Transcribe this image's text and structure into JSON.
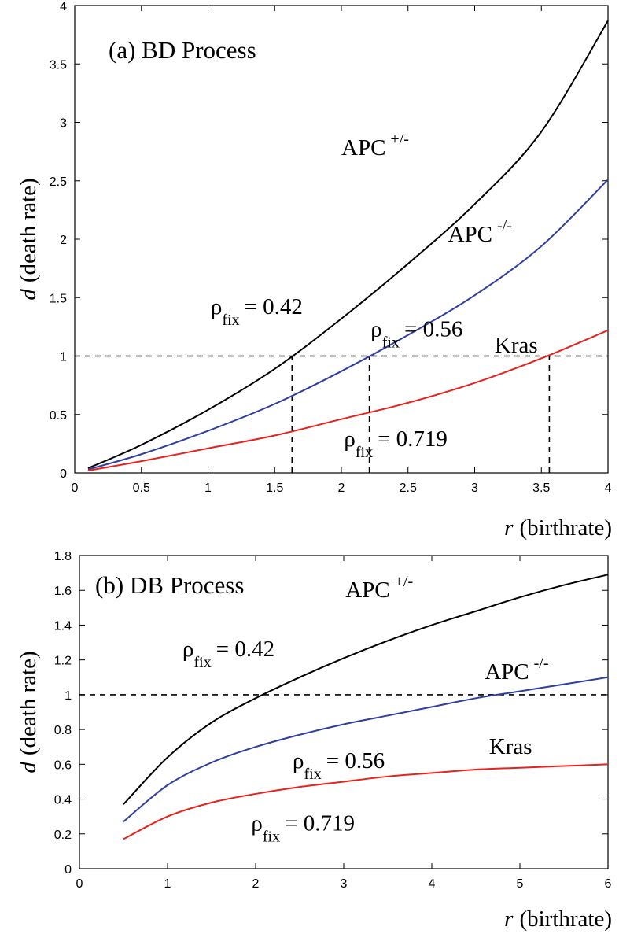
{
  "chart_data": [
    {
      "type": "line",
      "title": "(a) BD Process",
      "xlabel_var": "r",
      "xlabel_text": "(birthrate)",
      "ylabel_var": "d",
      "ylabel_text": "(death rate)",
      "xlim": [
        0,
        4
      ],
      "ylim": [
        0,
        4
      ],
      "xticks": [
        "0",
        "0.5",
        "1",
        "1.5",
        "2",
        "2.5",
        "3",
        "3.5",
        "4"
      ],
      "yticks": [
        "0",
        "0.5",
        "1",
        "1.5",
        "2",
        "2.5",
        "3",
        "3.5",
        "4"
      ],
      "grid": false,
      "series": [
        {
          "color": "#000000",
          "x": [
            0.1,
            0.5,
            1.0,
            1.5,
            2.0,
            2.5,
            3.0,
            3.5,
            4.0
          ],
          "y": [
            0.04,
            0.24,
            0.54,
            0.89,
            1.32,
            1.79,
            2.3,
            2.92,
            3.87
          ]
        },
        {
          "color": "#2e3fa0",
          "x": [
            0.1,
            0.5,
            1.0,
            1.5,
            2.0,
            2.5,
            3.0,
            3.5,
            4.0
          ],
          "y": [
            0.03,
            0.16,
            0.36,
            0.59,
            0.87,
            1.18,
            1.52,
            1.94,
            2.51
          ]
        },
        {
          "color": "#e8211c",
          "x": [
            0.1,
            0.5,
            1.0,
            1.5,
            2.0,
            2.5,
            3.0,
            3.5,
            4.0
          ],
          "y": [
            0.02,
            0.1,
            0.21,
            0.32,
            0.46,
            0.6,
            0.77,
            0.98,
            1.22
          ]
        }
      ],
      "reference_lines": [
        {
          "orientation": "horizontal",
          "y": 1,
          "xrange": [
            0,
            4
          ],
          "style": "dashed"
        },
        {
          "orientation": "vertical",
          "x": 1.63,
          "yrange": [
            0,
            1
          ],
          "style": "dashed"
        },
        {
          "orientation": "vertical",
          "x": 2.21,
          "yrange": [
            0,
            1
          ],
          "style": "dashed"
        },
        {
          "orientation": "vertical",
          "x": 3.56,
          "yrange": [
            0,
            1
          ],
          "style": "dashed"
        }
      ],
      "annotations": [
        {
          "base": "APC",
          "sup": "+/-",
          "x": 2.0,
          "y": 2.72
        },
        {
          "base": "APC",
          "sup": "-/-",
          "x": 2.8,
          "y": 1.98
        },
        {
          "base": "Kras",
          "sup": "",
          "x": 3.15,
          "y": 1.03
        },
        {
          "base": "ρ",
          "sub": "fix",
          "rest": "= 0.42",
          "x": 1.02,
          "y": 1.36
        },
        {
          "base": "ρ",
          "sub": "fix",
          "rest": "= 0.56",
          "x": 2.22,
          "y": 1.17
        },
        {
          "base": "ρ",
          "sub": "fix",
          "rest": "= 0.719",
          "x": 2.02,
          "y": 0.23
        }
      ]
    },
    {
      "type": "line",
      "title": "(b) DB Process",
      "xlabel_var": "r",
      "xlabel_text": "(birthrate)",
      "ylabel_var": "d",
      "ylabel_text": "(death rate)",
      "xlim": [
        0,
        6
      ],
      "ylim": [
        0,
        1.8
      ],
      "xticks": [
        "0",
        "1",
        "2",
        "3",
        "4",
        "5",
        "6"
      ],
      "yticks": [
        "0",
        "0.2",
        "0.4",
        "0.6",
        "0.8",
        "1",
        "1.2",
        "1.4",
        "1.6",
        "1.8"
      ],
      "grid": false,
      "series": [
        {
          "color": "#000000",
          "x": [
            0.5,
            1.0,
            1.5,
            2.0,
            2.5,
            3.0,
            3.5,
            4.0,
            4.5,
            5.0,
            5.5,
            6.0
          ],
          "y": [
            0.37,
            0.64,
            0.84,
            0.98,
            1.1,
            1.21,
            1.31,
            1.4,
            1.48,
            1.56,
            1.63,
            1.69
          ]
        },
        {
          "color": "#2e3fa0",
          "x": [
            0.5,
            1.0,
            1.5,
            2.0,
            2.5,
            3.0,
            3.5,
            4.0,
            4.5,
            5.0,
            5.5,
            6.0
          ],
          "y": [
            0.27,
            0.48,
            0.61,
            0.7,
            0.77,
            0.83,
            0.88,
            0.93,
            0.98,
            1.02,
            1.06,
            1.1
          ]
        },
        {
          "color": "#e8211c",
          "x": [
            0.5,
            1.0,
            1.5,
            2.0,
            2.5,
            3.0,
            3.5,
            4.0,
            4.5,
            5.0,
            5.5,
            6.0
          ],
          "y": [
            0.17,
            0.3,
            0.38,
            0.43,
            0.47,
            0.5,
            0.53,
            0.55,
            0.57,
            0.58,
            0.59,
            0.6
          ]
        }
      ],
      "reference_lines": [
        {
          "orientation": "horizontal",
          "y": 1,
          "xrange": [
            0,
            6
          ],
          "style": "dashed"
        }
      ],
      "annotations": [
        {
          "base": "APC",
          "sup": "+/-",
          "x": 3.02,
          "y": 1.56
        },
        {
          "base": "APC",
          "sup": "-/-",
          "x": 4.6,
          "y": 1.09
        },
        {
          "base": "Kras",
          "sup": "",
          "x": 4.65,
          "y": 0.66
        },
        {
          "base": "ρ",
          "sub": "fix",
          "rest": "= 0.42",
          "x": 1.17,
          "y": 1.22
        },
        {
          "base": "ρ",
          "sub": "fix",
          "rest": "= 0.56",
          "x": 2.42,
          "y": 0.58
        },
        {
          "base": "ρ",
          "sub": "fix",
          "rest": "= 0.719",
          "x": 1.95,
          "y": 0.22
        }
      ]
    }
  ]
}
